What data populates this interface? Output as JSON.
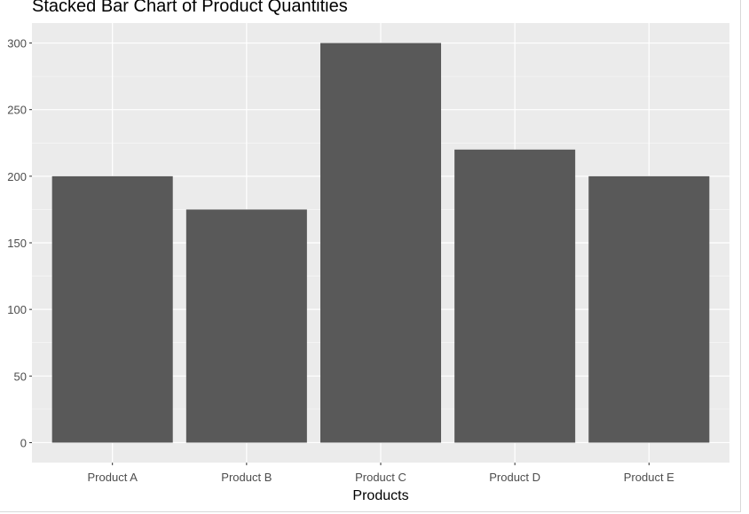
{
  "chart_data": {
    "type": "bar",
    "title": "Stacked Bar Chart of Product Quantities",
    "xlabel": "Products",
    "ylabel": "",
    "categories": [
      "Product A",
      "Product B",
      "Product C",
      "Product D",
      "Product E"
    ],
    "values": [
      200,
      175,
      300,
      220,
      200
    ],
    "ylim": [
      -15,
      315
    ],
    "yticks": [
      0,
      50,
      100,
      150,
      200,
      250,
      300
    ],
    "grid": true,
    "colors": {
      "panel_background": "#EBEBEB",
      "grid_major": "#FFFFFF",
      "bar_fill": "#595959",
      "tick_label": "#4D4D4D",
      "axis_title": "#000000"
    }
  }
}
